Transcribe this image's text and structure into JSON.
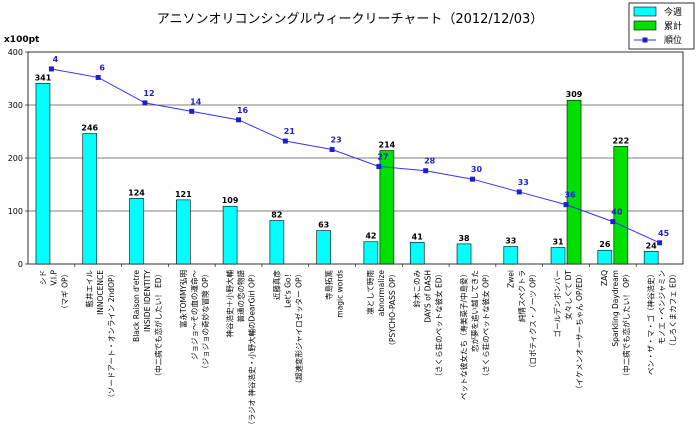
{
  "chart_data": {
    "type": "bar",
    "title": "アニソンオリコンシングルウィークリーチャート（2012/12/03）",
    "ylabel": "x100pt",
    "ylim": [
      0,
      400
    ],
    "yticks": [
      0,
      100,
      200,
      300,
      400
    ],
    "y2lim": [
      0,
      50
    ],
    "y2_reversed": true,
    "grid": true,
    "legend": "top-right",
    "categories": [
      [
        "シド",
        "V.I.P",
        "（マギ OP）"
      ],
      [
        "藍井エイル",
        "INNOCENCE",
        "（ソードアート・オンライン 2ndOP）"
      ],
      [
        "Black Raison d'etre",
        "INSIDE IDENTITY",
        "（中二病でも恋がしたい！ ED）"
      ],
      [
        "富永TOMMY弘明",
        "ジョジョ〜その血の運命〜",
        "（ジョジョの奇妙な冒険 OP）"
      ],
      [
        "神谷浩史＋小野大輔",
        "普通の恋の物語",
        "（ラジオ 神谷浩史・小野大輔のDearGirl OP）"
      ],
      [
        "近藤真彦",
        "Let's Go！",
        "（超速変形ジャイロゼッター OP）"
      ],
      [
        "寺島拓篤",
        "magic words"
      ],
      [
        "凛として時雨",
        "abnormalize",
        "（PSYCHO-PASS OP）"
      ],
      [
        "鈴木このみ",
        "DAYS of DASH",
        "（さくら荘のペットな彼女 ED）"
      ],
      [
        "ペットな彼女たち（寿美菜子/中島愛）",
        "恋が夢を追い越してきた",
        "（さくら荘のペットな彼女 OP）"
      ],
      [
        "Zwei",
        "純情スペクトラ",
        "（ロボティクス・ノーツ OP）"
      ],
      [
        "ゴールデンボンバー",
        "女々しくて DT",
        "（イケメンオーサーちゃん OP/ED）"
      ],
      [
        "ZAQ",
        "Sparkling Daydream",
        "（中二病でも恋がしたい！ OP）"
      ],
      [
        "ベン・ザ・マ・ゴ（神谷浩史）",
        "モノエ・ベンジャミン",
        "（しろくまカフェ ED）"
      ]
    ],
    "series": [
      {
        "name": "今週",
        "type": "bar",
        "color": "#00ffff",
        "values": [
          341,
          246,
          124,
          121,
          109,
          82,
          63,
          42,
          41,
          38,
          33,
          31,
          26,
          24
        ]
      },
      {
        "name": "累計",
        "type": "bar",
        "color": "#00e000",
        "values": [
          null,
          null,
          null,
          null,
          null,
          null,
          null,
          214,
          null,
          null,
          null,
          309,
          222,
          null
        ]
      },
      {
        "name": "順位",
        "type": "line",
        "axis": "secondary",
        "color": "#3333ff",
        "values": [
          4,
          6,
          12,
          14,
          16,
          21,
          23,
          27,
          28,
          30,
          33,
          36,
          40,
          45
        ]
      }
    ]
  }
}
